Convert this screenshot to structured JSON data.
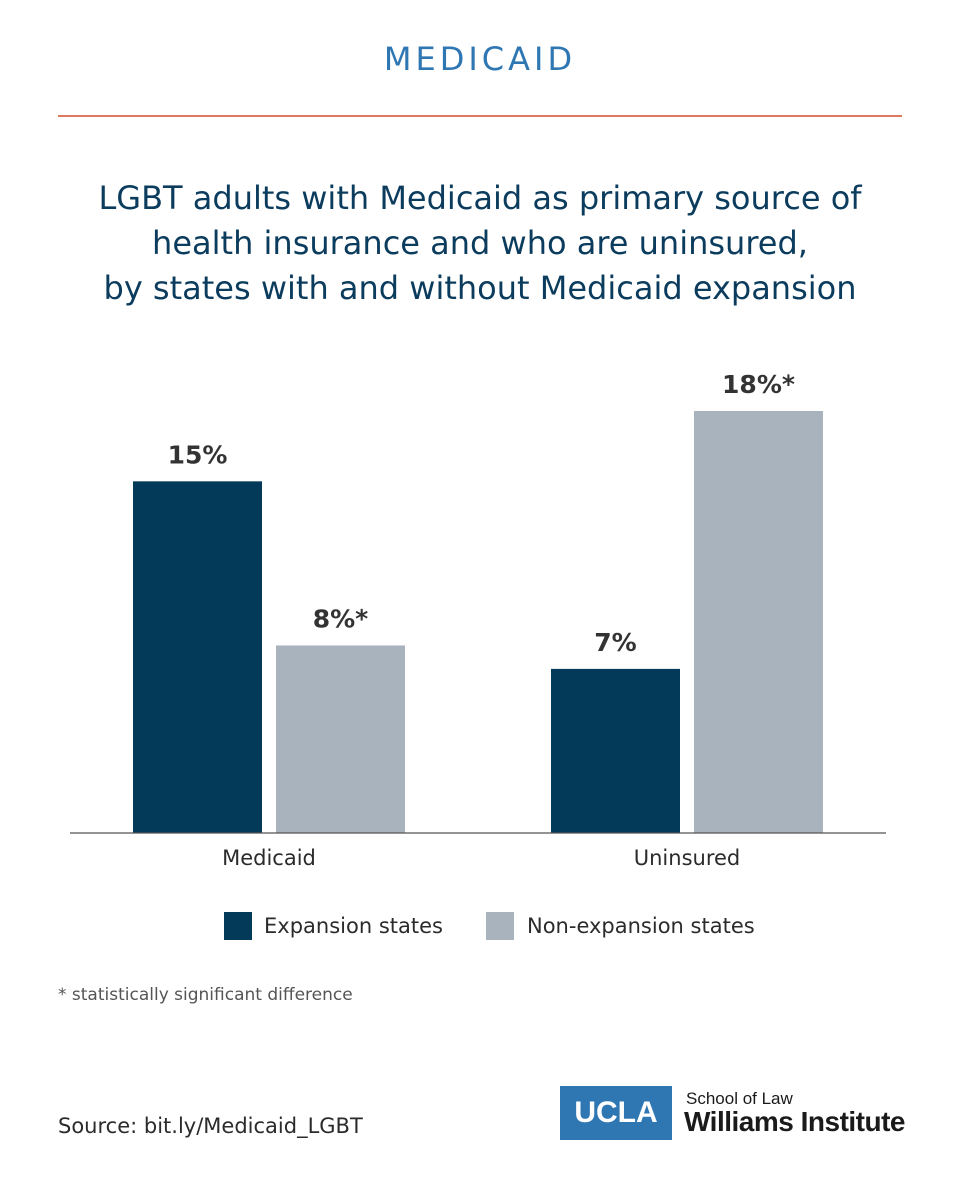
{
  "header": {
    "label": "MEDICAID"
  },
  "chart_data": {
    "type": "bar",
    "title_lines": [
      "LGBT adults with Medicaid as primary source of",
      "health insurance and who are uninsured,",
      "by states with and without Medicaid expansion"
    ],
    "categories": [
      "Medicaid",
      "Uninsured"
    ],
    "series": [
      {
        "name": "Expansion states",
        "color": "#033a5a",
        "values": [
          15,
          7
        ],
        "labels": [
          "15%",
          "7%"
        ]
      },
      {
        "name": "Non-expansion states",
        "color": "#a9b3be",
        "values": [
          8,
          18
        ],
        "labels": [
          "8%*",
          "18%*"
        ]
      }
    ],
    "ylim": [
      0,
      18
    ],
    "xlabel": "",
    "ylabel": "",
    "legend_position": "bottom"
  },
  "footnote": "* statistically significant difference",
  "source": "Source: bit.ly/Medicaid_LGBT",
  "logo": {
    "ucla": "UCLA",
    "school": "School of Law",
    "institute": "Williams Institute"
  }
}
